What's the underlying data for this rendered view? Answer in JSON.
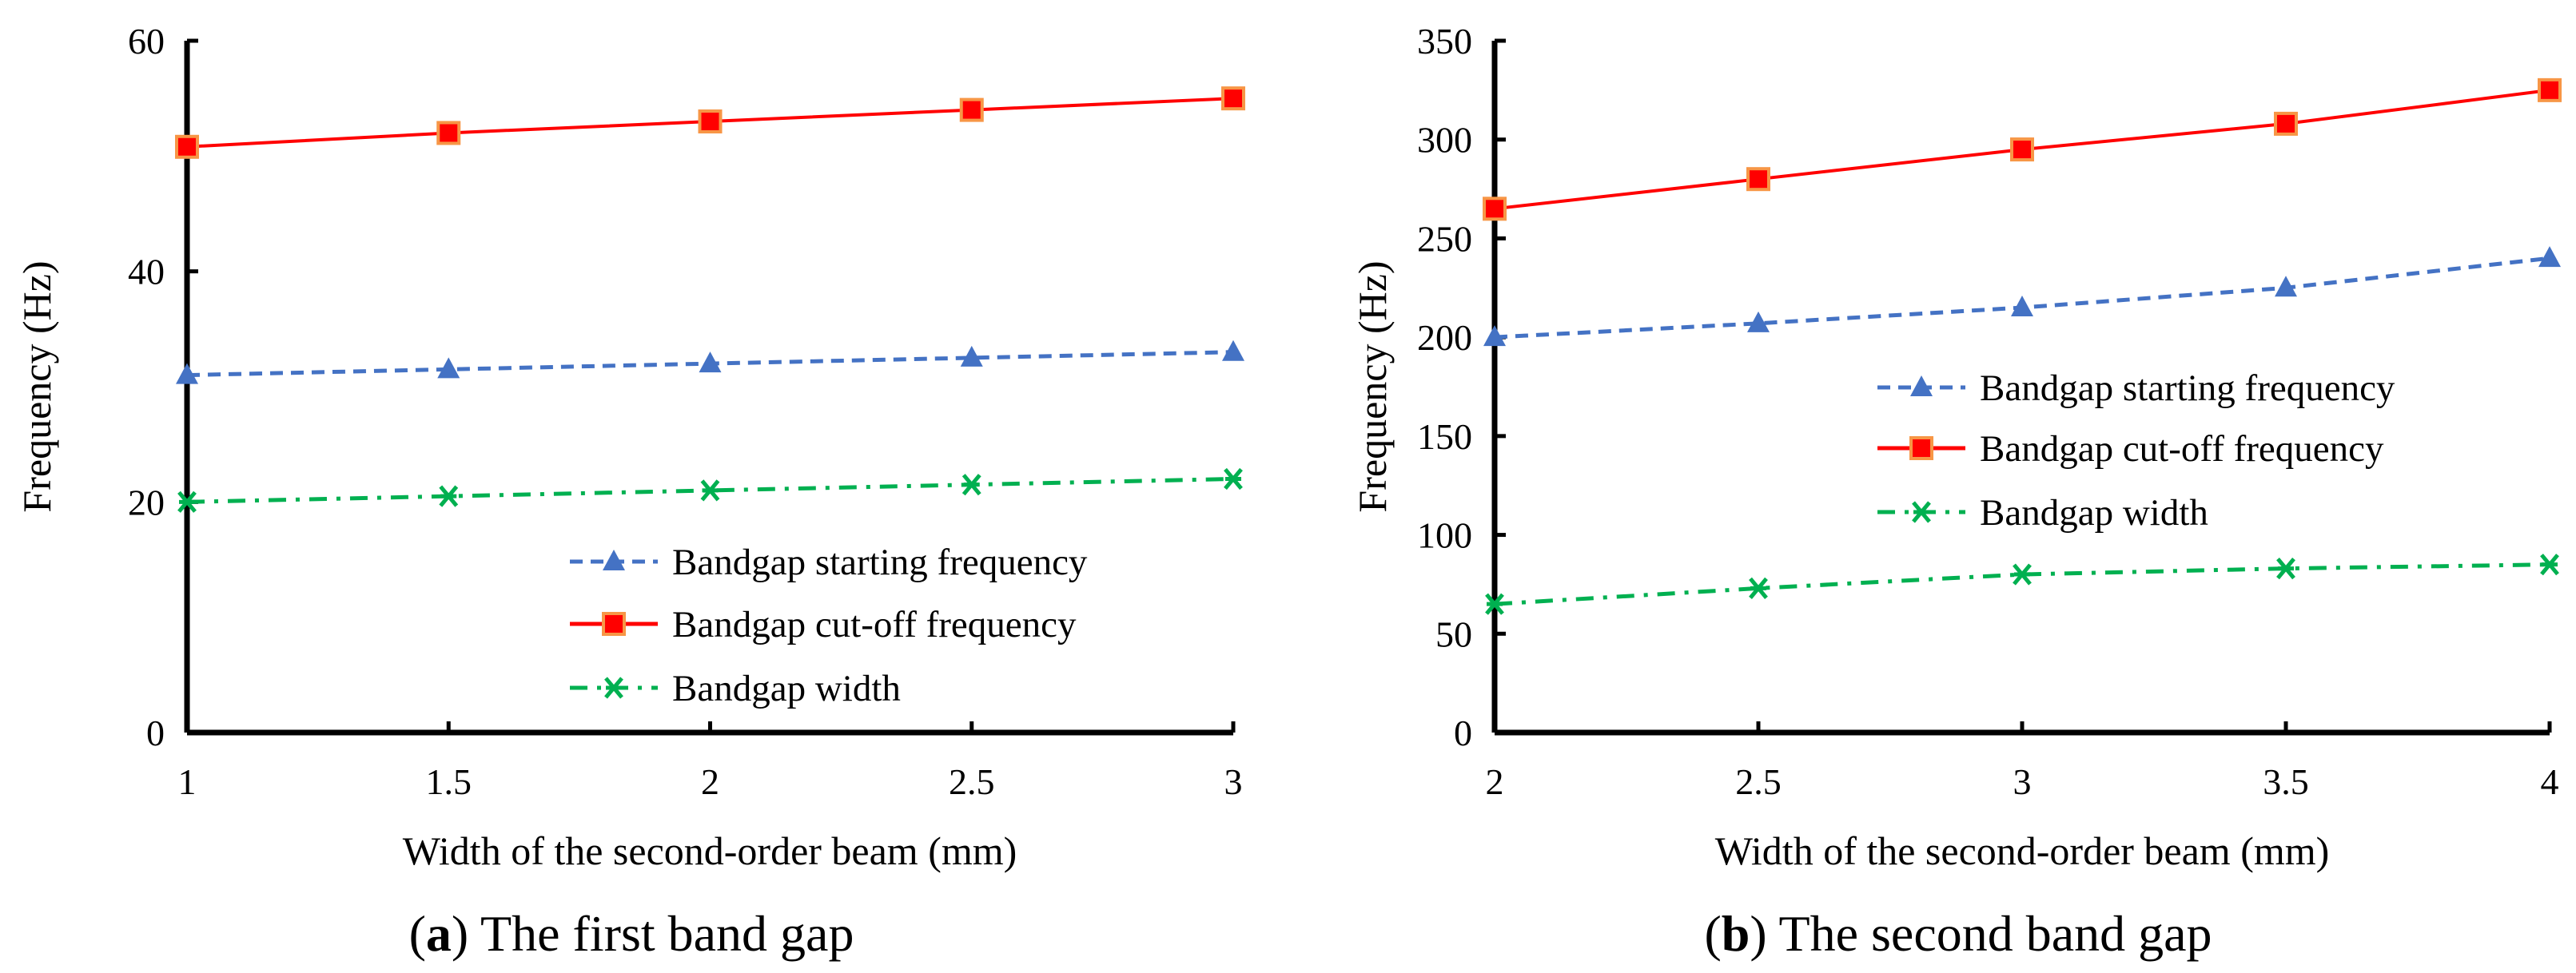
{
  "chart_data": [
    {
      "type": "line",
      "caption_letter": "a",
      "caption": " The first band gap",
      "xlabel": "Width of the second-order beam (mm)",
      "ylabel": "Frequency (Hz)",
      "x": [
        1,
        1.5,
        2,
        2.5,
        3
      ],
      "x_ticks": [
        "1",
        "1.5",
        "2",
        "2.5",
        "3"
      ],
      "xlim": [
        1,
        3
      ],
      "ylim": [
        0,
        60
      ],
      "y_ticks": [
        0,
        20,
        40,
        60
      ],
      "grid": false,
      "legend_position": "lower-right",
      "series": [
        {
          "name": "Bandgap starting frequency",
          "values": [
            31,
            31.5,
            32,
            32.5,
            33
          ],
          "color": "#4472C4",
          "style": "dashed",
          "marker": "triangle"
        },
        {
          "name": "Bandgap cut-off frequency",
          "values": [
            50.8,
            52,
            53,
            54,
            55
          ],
          "color": "#FF0000",
          "style": "solid",
          "marker": "square"
        },
        {
          "name": "Bandgap width",
          "values": [
            20,
            20.5,
            21,
            21.5,
            22
          ],
          "color": "#00B050",
          "style": "dashdot",
          "marker": "x"
        }
      ]
    },
    {
      "type": "line",
      "caption_letter": "b",
      "caption": " The second band gap",
      "xlabel": "Width of the second-order beam (mm)",
      "ylabel": "Frequency (Hz)",
      "x": [
        2,
        2.5,
        3,
        3.5,
        4
      ],
      "x_ticks": [
        "2",
        "2.5",
        "3",
        "3.5",
        "4"
      ],
      "xlim": [
        2,
        4
      ],
      "ylim": [
        0,
        350
      ],
      "y_ticks": [
        0,
        50,
        100,
        150,
        200,
        250,
        300,
        350
      ],
      "grid": false,
      "legend_position": "center-right",
      "series": [
        {
          "name": "Bandgap starting frequency",
          "values": [
            200,
            207,
            215,
            225,
            240
          ],
          "color": "#4472C4",
          "style": "dashed",
          "marker": "triangle"
        },
        {
          "name": "Bandgap cut-off frequency",
          "values": [
            265,
            280,
            295,
            308,
            325
          ],
          "color": "#FF0000",
          "style": "solid",
          "marker": "square"
        },
        {
          "name": "Bandgap width",
          "values": [
            65,
            73,
            80,
            83,
            85
          ],
          "color": "#00B050",
          "style": "dashdot",
          "marker": "x"
        }
      ]
    }
  ]
}
